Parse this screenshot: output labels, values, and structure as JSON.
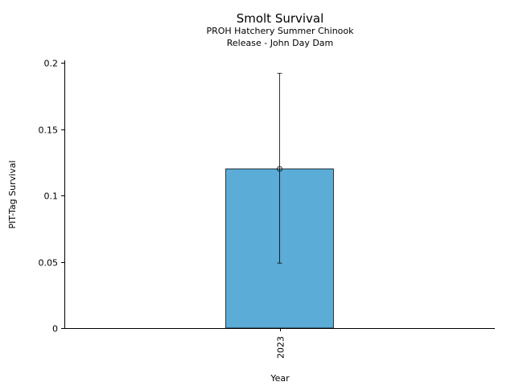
{
  "chart_data": {
    "type": "bar",
    "title": "Smolt Survival",
    "subtitle_lines": [
      "PROH Hatchery Summer Chinook",
      "Release - John Day Dam"
    ],
    "xlabel": "Year",
    "ylabel": "PIT-Tag Survival",
    "categories": [
      "2023"
    ],
    "values": [
      0.12
    ],
    "error_low": [
      0.049
    ],
    "error_high": [
      0.192
    ],
    "ylim": [
      0,
      0.2
    ],
    "yticks": [
      0,
      0.05,
      0.1,
      0.15,
      0.2
    ],
    "ytick_labels": [
      "0",
      "0.05",
      "0.1",
      "0.15",
      "0.2"
    ],
    "bar_color": "#5bacd6",
    "grid": false,
    "legend": "none"
  }
}
